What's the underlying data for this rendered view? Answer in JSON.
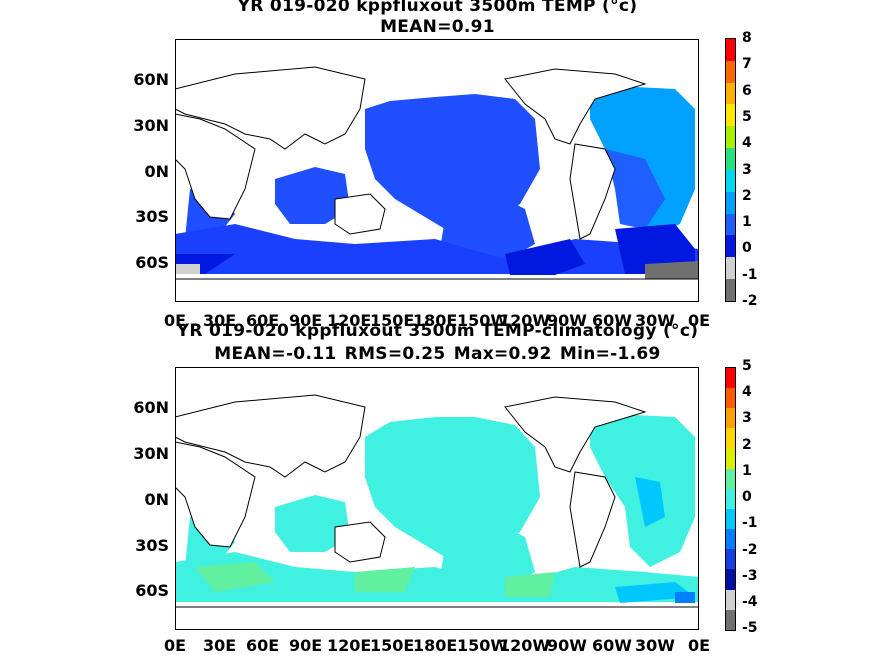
{
  "panels": [
    {
      "title_line1": "YR 019-020 kppfluxout 3500m TEMP (°c)",
      "title_line2": "MEAN=0.91",
      "lat_labels": [
        "60N",
        "30N",
        "0N",
        "30S",
        "60S"
      ],
      "lon_labels": [
        "0E",
        "30E",
        "60E",
        "90E",
        "120E",
        "150E",
        "180E",
        "150W",
        "120W",
        "90W",
        "60W",
        "30W",
        "0E"
      ],
      "colorbar": {
        "labels": [
          "8",
          "7",
          "6",
          "5",
          "4",
          "3",
          "2",
          "1",
          "0",
          "-1",
          "-2"
        ],
        "colors": [
          "#ff0000",
          "#ff6a00",
          "#ffb000",
          "#ffe800",
          "#a8f000",
          "#28e080",
          "#00d8f0",
          "#00a0ff",
          "#1f5fff",
          "#0018e0",
          "#d0d0d0",
          "#707070"
        ]
      }
    },
    {
      "title_line1": "YR 019-020 kppfluxout 3500m TEMP-climatology (°c)",
      "title_line2": "MEAN=-0.11   RMS=0.25   Max=0.92   Min=-1.69",
      "lat_labels": [
        "60N",
        "30N",
        "0N",
        "30S",
        "60S"
      ],
      "lon_labels": [
        "0E",
        "30E",
        "60E",
        "90E",
        "120E",
        "150E",
        "180E",
        "150W",
        "120W",
        "90W",
        "60W",
        "30W",
        "0E"
      ],
      "colorbar": {
        "labels": [
          "5",
          "4",
          "3",
          "2",
          "1",
          "0",
          "-1",
          "-2",
          "-3",
          "-4",
          "-5"
        ],
        "colors": [
          "#ff0000",
          "#ff5a00",
          "#ffa000",
          "#ffd800",
          "#d8f000",
          "#60f0a0",
          "#40f0e0",
          "#00c8ff",
          "#0080ff",
          "#1840e0",
          "#0010a0",
          "#d0d0d0",
          "#707070"
        ]
      }
    }
  ]
}
